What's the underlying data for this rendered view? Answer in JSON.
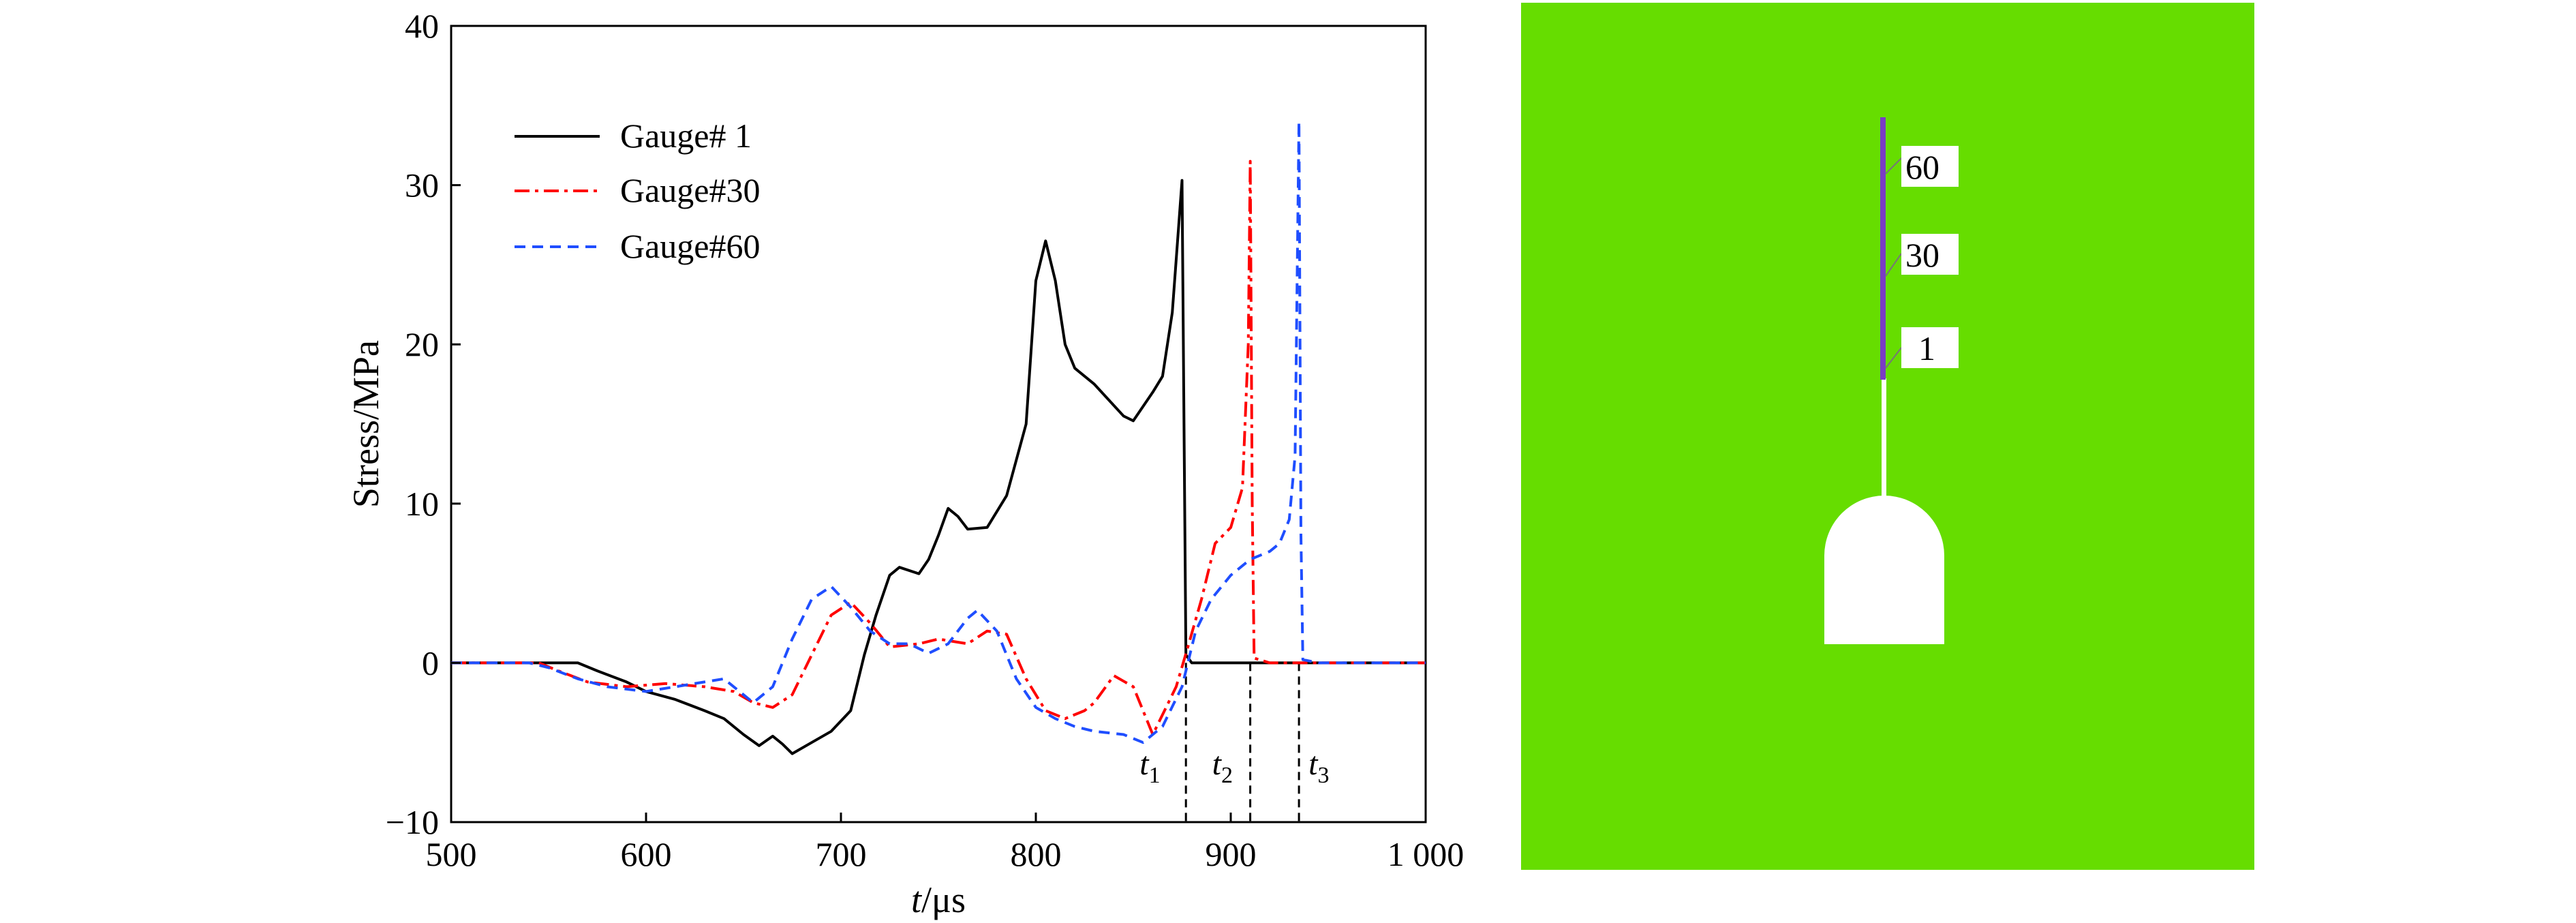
{
  "chart_data": {
    "type": "line",
    "title": "",
    "xlabel_italic": "t",
    "xlabel_unit": "/μs",
    "ylabel": "Stress/MPa",
    "xlim": [
      500,
      1000
    ],
    "ylim": [
      -10,
      40
    ],
    "x_ticks": [
      500,
      600,
      700,
      800,
      900,
      1000
    ],
    "x_tick_labels": [
      "500",
      "600",
      "700",
      "800",
      "900",
      "1 000"
    ],
    "y_ticks": [
      -10,
      0,
      10,
      20,
      30,
      40
    ],
    "y_tick_labels": [
      "−10",
      "0",
      "10",
      "20",
      "30",
      "40"
    ],
    "grid": false,
    "legend_position": "top-left",
    "series": [
      {
        "name": "Gauge# 1",
        "color": "#000000",
        "style": "solid",
        "points": [
          [
            500,
            0
          ],
          [
            560,
            0
          ],
          [
            565,
            0
          ],
          [
            575,
            -0.5
          ],
          [
            590,
            -1.2
          ],
          [
            600,
            -1.8
          ],
          [
            615,
            -2.3
          ],
          [
            630,
            -3
          ],
          [
            640,
            -3.5
          ],
          [
            650,
            -4.5
          ],
          [
            658,
            -5.2
          ],
          [
            665,
            -4.6
          ],
          [
            670,
            -5.1
          ],
          [
            675,
            -5.7
          ],
          [
            685,
            -5
          ],
          [
            695,
            -4.3
          ],
          [
            705,
            -3
          ],
          [
            712,
            0.5
          ],
          [
            718,
            3
          ],
          [
            725,
            5.5
          ],
          [
            730,
            6
          ],
          [
            740,
            5.6
          ],
          [
            745,
            6.5
          ],
          [
            750,
            8
          ],
          [
            755,
            9.7
          ],
          [
            760,
            9.2
          ],
          [
            765,
            8.4
          ],
          [
            775,
            8.5
          ],
          [
            785,
            10.5
          ],
          [
            795,
            15
          ],
          [
            800,
            24
          ],
          [
            805,
            26.5
          ],
          [
            810,
            24
          ],
          [
            815,
            20
          ],
          [
            820,
            18.5
          ],
          [
            830,
            17.5
          ],
          [
            845,
            15.5
          ],
          [
            850,
            15.2
          ],
          [
            860,
            17
          ],
          [
            865,
            18
          ],
          [
            870,
            22
          ],
          [
            875,
            30.3
          ],
          [
            876,
            15
          ],
          [
            877,
            0.5
          ],
          [
            880,
            0
          ],
          [
            1000,
            0
          ]
        ]
      },
      {
        "name": "Gauge#30",
        "color": "#ff0000",
        "style": "dashdot",
        "points": [
          [
            500,
            0
          ],
          [
            545,
            0
          ],
          [
            555,
            -0.5
          ],
          [
            570,
            -1.2
          ],
          [
            590,
            -1.5
          ],
          [
            610,
            -1.3
          ],
          [
            630,
            -1.5
          ],
          [
            645,
            -1.8
          ],
          [
            655,
            -2.5
          ],
          [
            665,
            -2.8
          ],
          [
            675,
            -2
          ],
          [
            685,
            0.5
          ],
          [
            695,
            3
          ],
          [
            705,
            3.8
          ],
          [
            715,
            2.5
          ],
          [
            725,
            1
          ],
          [
            740,
            1.2
          ],
          [
            750,
            1.5
          ],
          [
            765,
            1.2
          ],
          [
            775,
            2
          ],
          [
            785,
            1.8
          ],
          [
            795,
            -1
          ],
          [
            805,
            -3
          ],
          [
            815,
            -3.5
          ],
          [
            825,
            -3
          ],
          [
            830,
            -2.5
          ],
          [
            840,
            -0.8
          ],
          [
            850,
            -1.5
          ],
          [
            860,
            -4.5
          ],
          [
            866,
            -3
          ],
          [
            872,
            -1.5
          ],
          [
            878,
            1
          ],
          [
            885,
            4
          ],
          [
            892,
            7.5
          ],
          [
            900,
            8.5
          ],
          [
            906,
            11
          ],
          [
            909,
            20
          ],
          [
            910,
            31.5
          ],
          [
            911,
            10
          ],
          [
            912,
            0.3
          ],
          [
            920,
            0
          ],
          [
            1000,
            0
          ]
        ]
      },
      {
        "name": "Gauge#60",
        "color": "#1f4eff",
        "style": "dashed",
        "points": [
          [
            500,
            0
          ],
          [
            540,
            0
          ],
          [
            550,
            -0.3
          ],
          [
            565,
            -1
          ],
          [
            580,
            -1.5
          ],
          [
            600,
            -1.8
          ],
          [
            615,
            -1.5
          ],
          [
            630,
            -1.2
          ],
          [
            640,
            -1
          ],
          [
            655,
            -2.5
          ],
          [
            665,
            -1.5
          ],
          [
            675,
            1.5
          ],
          [
            685,
            4
          ],
          [
            695,
            4.8
          ],
          [
            705,
            3.5
          ],
          [
            715,
            2
          ],
          [
            725,
            1.2
          ],
          [
            735,
            1.2
          ],
          [
            745,
            0.6
          ],
          [
            755,
            1.2
          ],
          [
            765,
            2.8
          ],
          [
            770,
            3.3
          ],
          [
            780,
            2
          ],
          [
            790,
            -1
          ],
          [
            800,
            -2.8
          ],
          [
            810,
            -3.5
          ],
          [
            820,
            -4
          ],
          [
            830,
            -4.3
          ],
          [
            845,
            -4.5
          ],
          [
            855,
            -5
          ],
          [
            865,
            -4
          ],
          [
            875,
            -1.5
          ],
          [
            882,
            2
          ],
          [
            890,
            4
          ],
          [
            900,
            5.5
          ],
          [
            910,
            6.5
          ],
          [
            920,
            7
          ],
          [
            925,
            7.5
          ],
          [
            930,
            9
          ],
          [
            933,
            13
          ],
          [
            935,
            34
          ],
          [
            936,
            8
          ],
          [
            937,
            0.2
          ],
          [
            945,
            0
          ],
          [
            1000,
            0
          ]
        ]
      }
    ],
    "markers": [
      {
        "label": "t",
        "sub": "1",
        "x": 877
      },
      {
        "label": "t",
        "sub": "2",
        "x": 910
      },
      {
        "label": "t",
        "sub": "3",
        "x": 935
      }
    ]
  },
  "model_panel": {
    "background_color": "#66dd00",
    "gauge_line_color": "#7a3cc4",
    "gauge_labels": [
      "60",
      "30",
      "1"
    ]
  }
}
